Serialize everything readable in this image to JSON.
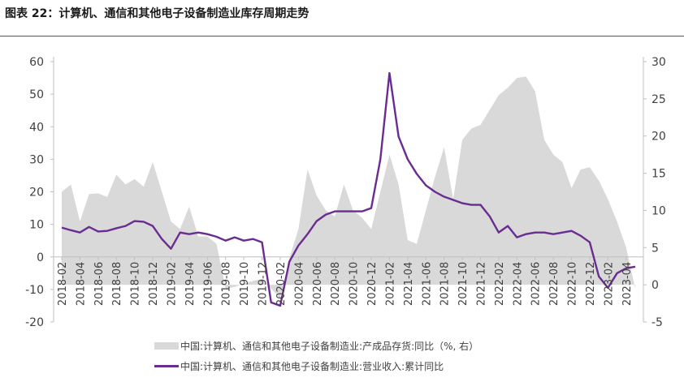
{
  "title": "图表 22：计算机、通信和其他电子设备制造业库存周期走势",
  "chart_data": {
    "type": "area",
    "x_labels": [
      "2018-02",
      "2018-04",
      "2018-06",
      "2018-08",
      "2018-10",
      "2018-12",
      "2019-02",
      "2019-04",
      "2019-06",
      "2019-08",
      "2019-10",
      "2019-12",
      "2020-02",
      "2020-04",
      "2020-06",
      "2020-08",
      "2020-10",
      "2020-12",
      "2021-02",
      "2021-04",
      "2021-06",
      "2021-08",
      "2021-10",
      "2021-12",
      "2022-02",
      "2022-04",
      "2022-06",
      "2022-08",
      "2022-10",
      "2022-12",
      "2023-02",
      "2023-04"
    ],
    "left_axis": {
      "min": -20,
      "max": 60,
      "ticks": [
        "-20",
        "-10",
        "0",
        "10",
        "20",
        "30",
        "40",
        "50",
        "60"
      ]
    },
    "right_axis": {
      "min": -5,
      "max": 30,
      "ticks": [
        "-5",
        "0",
        "5",
        "10",
        "15",
        "20",
        "25",
        "30"
      ]
    },
    "series": [
      {
        "name": "中国:计算机、通信和其他电子设备制造业:产成品存货:同比（%, 右）",
        "type": "area",
        "axis": "right",
        "color": "#d9d9d9",
        "x": [
          "2018-02",
          "2018-03",
          "2018-04",
          "2018-05",
          "2018-06",
          "2018-07",
          "2018-08",
          "2018-09",
          "2018-10",
          "2018-11",
          "2018-12",
          "2019-01",
          "2019-02",
          "2019-03",
          "2019-04",
          "2019-05",
          "2019-06",
          "2019-07",
          "2019-08",
          "2019-09",
          "2019-10",
          "2019-11",
          "2019-12",
          "2020-01",
          "2020-02",
          "2020-03",
          "2020-04",
          "2020-05",
          "2020-06",
          "2020-07",
          "2020-08",
          "2020-09",
          "2020-10",
          "2020-11",
          "2020-12",
          "2021-01",
          "2021-02",
          "2021-03",
          "2021-04",
          "2021-05",
          "2021-06",
          "2021-07",
          "2021-08",
          "2021-09",
          "2021-10",
          "2021-11",
          "2021-12",
          "2022-01",
          "2022-02",
          "2022-03",
          "2022-04",
          "2022-05",
          "2022-06",
          "2022-07",
          "2022-08",
          "2022-09",
          "2022-10",
          "2022-11",
          "2022-12",
          "2023-01",
          "2023-02",
          "2023-03",
          "2023-04",
          "2023-05"
        ],
        "values": [
          12.5,
          13.5,
          8.5,
          12.2,
          12.3,
          11.8,
          14.8,
          13.5,
          14.2,
          13.2,
          16.5,
          12.5,
          8.5,
          7.5,
          10.5,
          6.5,
          6.5,
          5.5,
          -0.5,
          -0.3,
          0.2,
          0.5,
          0.8,
          -0.5,
          -1.8,
          3.5,
          7.5,
          15.5,
          12.0,
          10.0,
          9.2,
          13.5,
          10.0,
          9.0,
          7.5,
          12.5,
          17.5,
          13.5,
          6.0,
          5.5,
          10.0,
          14.5,
          18.5,
          11.5,
          19.5,
          21.0,
          21.5,
          23.5,
          25.5,
          26.5,
          27.8,
          28.0,
          26.0,
          19.5,
          17.5,
          16.5,
          13.0,
          15.5,
          15.8,
          14.0,
          11.5,
          8.5,
          5.0,
          -0.5
        ]
      },
      {
        "name": "中国:计算机、通信和其他电子设备制造业:营业收入:累计同比",
        "type": "line",
        "axis": "left",
        "color": "#6a2c91",
        "x": [
          "2018-02",
          "2018-03",
          "2018-04",
          "2018-05",
          "2018-06",
          "2018-07",
          "2018-08",
          "2018-09",
          "2018-10",
          "2018-11",
          "2018-12",
          "2019-01",
          "2019-02",
          "2019-03",
          "2019-04",
          "2019-05",
          "2019-06",
          "2019-07",
          "2019-08",
          "2019-09",
          "2019-10",
          "2019-11",
          "2019-12",
          "2020-01",
          "2020-02",
          "2020-03",
          "2020-04",
          "2020-05",
          "2020-06",
          "2020-07",
          "2020-08",
          "2020-09",
          "2020-10",
          "2020-11",
          "2020-12",
          "2021-01",
          "2021-02",
          "2021-03",
          "2021-04",
          "2021-05",
          "2021-06",
          "2021-07",
          "2021-08",
          "2021-09",
          "2021-10",
          "2021-11",
          "2021-12",
          "2022-01",
          "2022-02",
          "2022-03",
          "2022-04",
          "2022-05",
          "2022-06",
          "2022-07",
          "2022-08",
          "2022-09",
          "2022-10",
          "2022-11",
          "2022-12",
          "2023-01",
          "2023-02",
          "2023-03",
          "2023-04",
          "2023-05"
        ],
        "values": [
          9.0,
          8.2,
          7.5,
          9.2,
          7.8,
          8.0,
          8.8,
          9.5,
          11.0,
          10.8,
          9.5,
          5.5,
          2.5,
          7.5,
          7.0,
          7.5,
          7.0,
          6.2,
          5.0,
          6.0,
          5.0,
          5.5,
          4.5,
          -14.0,
          -15.0,
          -1.5,
          3.5,
          7.0,
          11.0,
          13.0,
          14.0,
          14.0,
          14.0,
          14.0,
          15.0,
          30.0,
          56.5,
          37.0,
          30.0,
          25.5,
          22.0,
          20.0,
          18.5,
          17.5,
          16.5,
          16.0,
          16.0,
          12.5,
          7.5,
          9.5,
          6.0,
          7.0,
          7.5,
          7.5,
          7.0,
          7.5,
          8.0,
          6.5,
          4.5,
          -6.0,
          -9.5,
          -5.0,
          -3.5,
          -3.0
        ]
      }
    ]
  }
}
